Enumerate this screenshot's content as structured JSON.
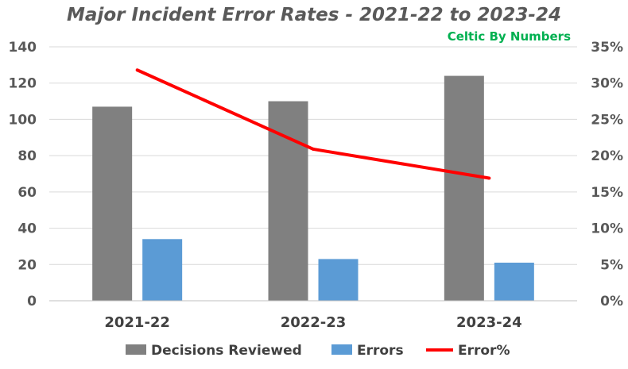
{
  "chart_data": {
    "type": "bar",
    "title": "Major Incident Error Rates - 2021-22 to 2023-24",
    "watermark": "Celtic By Numbers",
    "categories": [
      "2021-22",
      "2022-23",
      "2023-24"
    ],
    "series": [
      {
        "name": "Decisions Reviewed",
        "kind": "bar",
        "axis": "left",
        "color": "#808080",
        "values": [
          107,
          110,
          124
        ]
      },
      {
        "name": "Errors",
        "kind": "bar",
        "axis": "left",
        "color": "#5b9bd5",
        "values": [
          34,
          23,
          21
        ]
      },
      {
        "name": "Error%",
        "kind": "line",
        "axis": "right",
        "color": "#ff0000",
        "values": [
          31.8,
          20.9,
          16.9
        ]
      }
    ],
    "y_left": {
      "min": 0,
      "max": 140,
      "ticks": [
        "0",
        "20",
        "40",
        "60",
        "80",
        "100",
        "120",
        "140"
      ]
    },
    "y_right": {
      "min": 0,
      "max": 35,
      "ticks": [
        "0%",
        "5%",
        "10%",
        "15%",
        "20%",
        "25%",
        "30%",
        "35%"
      ]
    },
    "gridlines": true,
    "legend_position": "bottom"
  }
}
